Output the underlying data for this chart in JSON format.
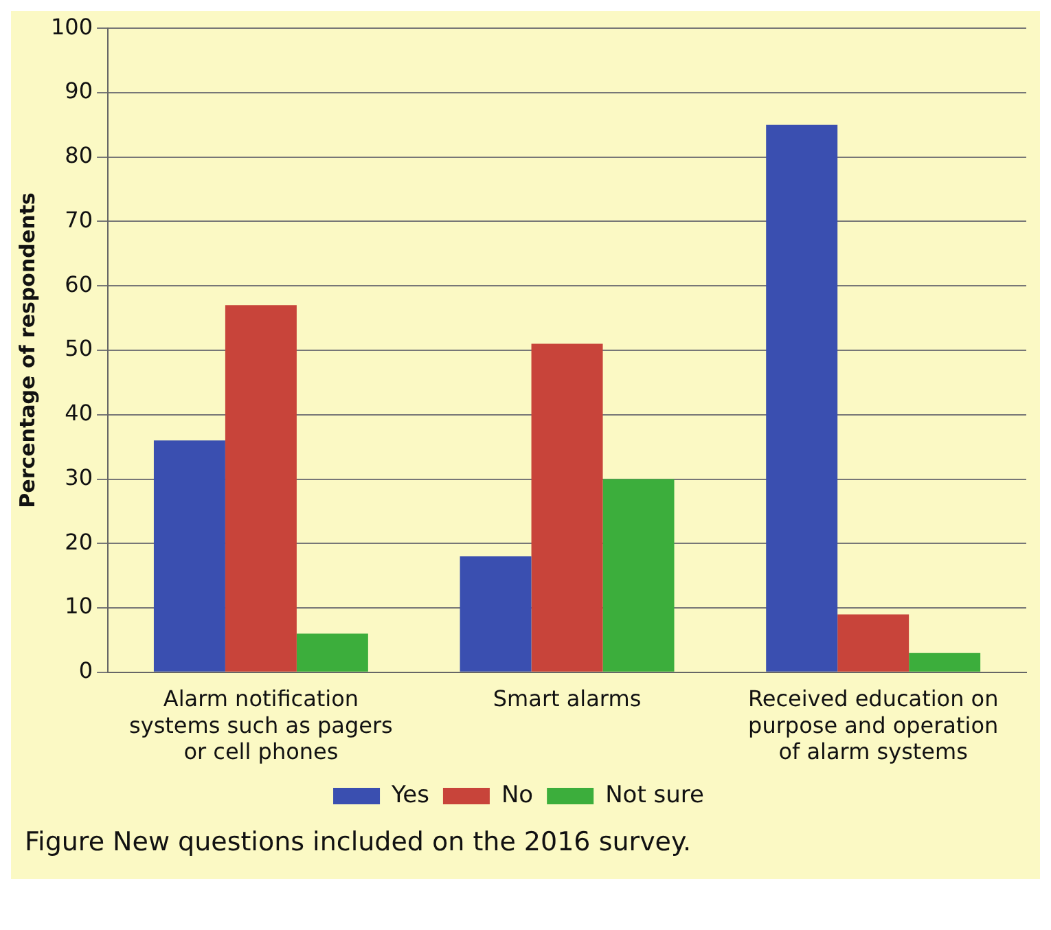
{
  "chart_data": {
    "type": "bar",
    "ylabel": "Percentage of respondents",
    "categories": [
      "Alarm notification systems such as pagers or cell phones",
      "Smart alarms",
      "Received education on purpose and operation of alarm systems"
    ],
    "series": [
      {
        "name": "Yes",
        "color": "#3a4fb0",
        "values": [
          36,
          18,
          85
        ]
      },
      {
        "name": "No",
        "color": "#c8443a",
        "values": [
          57,
          51,
          9
        ]
      },
      {
        "name": "Not sure",
        "color": "#3cae3c",
        "values": [
          6,
          30,
          3
        ]
      }
    ],
    "ylim": [
      0,
      100
    ],
    "yticks": [
      0,
      10,
      20,
      30,
      40,
      50,
      60,
      70,
      80,
      90,
      100
    ],
    "grid": "y",
    "legend": "bottom",
    "annotations": [
      "Figure  New questions included on the 2016 survey."
    ]
  }
}
